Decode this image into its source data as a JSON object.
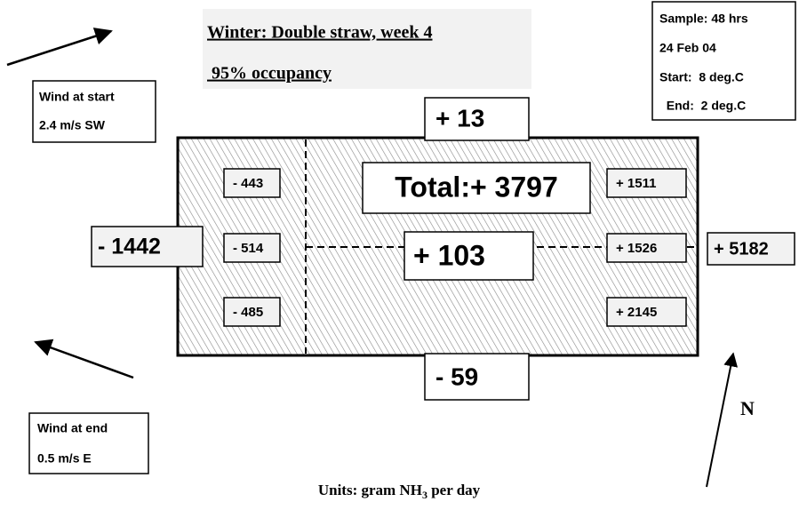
{
  "title": {
    "line1": "Winter: Double straw, week 4",
    "line2": " 95% occupancy"
  },
  "sample": [
    "Sample: 48 hrs",
    "24 Feb 04",
    "Start:  8 deg.C",
    "  End:  2 deg.C"
  ],
  "wind_start": [
    "Wind at start",
    "2.4 m/s SW"
  ],
  "wind_end": [
    "Wind at end",
    "0.5 m/s E"
  ],
  "flows": {
    "north": "+ 13",
    "south": "- 59",
    "west": "- 1442",
    "east": "+ 5182"
  },
  "cells": {
    "west": [
      "- 443",
      "- 514",
      "- 485"
    ],
    "east": [
      "+ 1511",
      "+ 1526",
      "+ 2145"
    ],
    "centre": "+ 103"
  },
  "total": "Total:+ 3797",
  "compass": "N",
  "units": {
    "text": "Units: gram NH",
    "subscript": "3",
    "suffix": " per day"
  }
}
